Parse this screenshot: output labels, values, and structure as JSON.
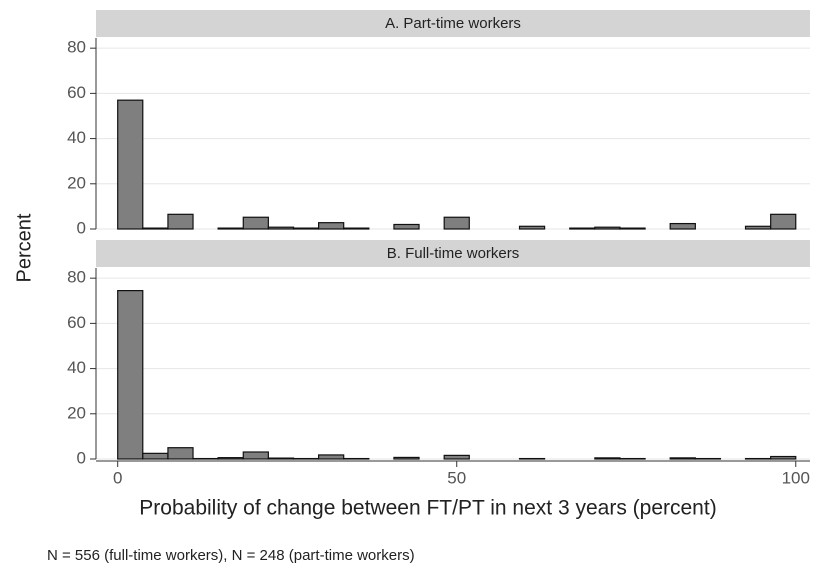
{
  "chart_data": [
    {
      "type": "histogram",
      "title": "A. Part-time workers",
      "color": "#7f7f7f",
      "bins": [
        0,
        3.7,
        7.41,
        11.11,
        14.81,
        18.52,
        22.22,
        25.93,
        29.63,
        33.33,
        37.04,
        40.74,
        44.44,
        48.15,
        51.85,
        55.56,
        59.26,
        62.96,
        66.67,
        70.37,
        74.07,
        77.78,
        81.48,
        85.19,
        88.89,
        92.59,
        96.3,
        100
      ],
      "values": [
        57,
        0.4,
        6.5,
        0,
        0.4,
        5.2,
        0.8,
        0.4,
        2.8,
        0.4,
        0,
        2,
        0,
        5.2,
        0,
        0,
        1.2,
        0,
        0.4,
        0.8,
        0.4,
        0,
        2.4,
        0,
        0,
        1.2,
        6.5
      ],
      "xlim": [
        -3.2,
        102.1
      ],
      "ylim": [
        0,
        84.5
      ],
      "yticks": [
        0,
        20,
        40,
        60,
        80
      ],
      "grid": true
    },
    {
      "type": "histogram",
      "title": "B. Full-time workers",
      "color": "#7f7f7f",
      "bins": [
        0,
        3.7,
        7.41,
        11.11,
        14.81,
        18.52,
        22.22,
        25.93,
        29.63,
        33.33,
        37.04,
        40.74,
        44.44,
        48.15,
        51.85,
        55.56,
        59.26,
        62.96,
        66.67,
        70.37,
        74.07,
        77.78,
        81.48,
        85.19,
        88.89,
        92.59,
        96.3,
        100
      ],
      "values": [
        74.5,
        2.5,
        5,
        0.2,
        0.6,
        3.1,
        0.4,
        0.2,
        1.8,
        0.2,
        0,
        0.7,
        0,
        1.6,
        0,
        0,
        0.2,
        0,
        0,
        0.5,
        0.2,
        0,
        0.5,
        0.2,
        0,
        0.2,
        1.1
      ],
      "xlim": [
        -3.2,
        102.1
      ],
      "ylim": [
        0,
        84.5
      ],
      "yticks": [
        0,
        20,
        40,
        60,
        80
      ],
      "xticks": [
        0,
        50,
        100
      ],
      "grid": true
    }
  ],
  "y_label": "Percent",
  "x_label": "Probability of change between FT/PT in next 3 years (percent)",
  "note": "N = 556 (full-time workers), N = 248 (part-time workers)"
}
